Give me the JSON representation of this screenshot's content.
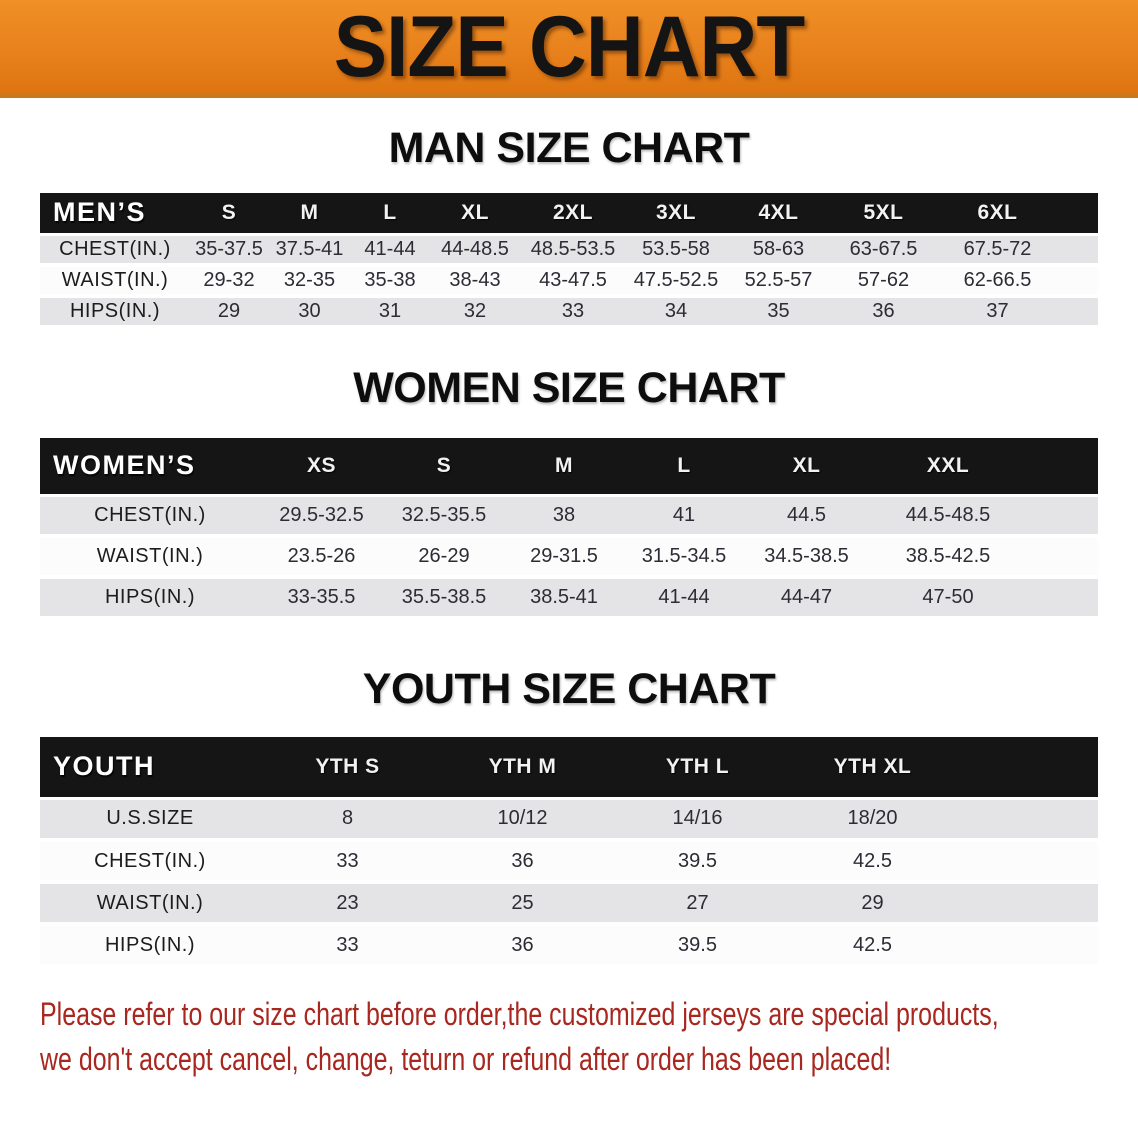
{
  "banner": {
    "title": "SIZE CHART"
  },
  "sections": [
    {
      "title": "MAN SIZE CHART",
      "table": {
        "label": "MEN’S",
        "columns": [
          "S",
          "M",
          "L",
          "XL",
          "2XL",
          "3XL",
          "4XL",
          "5XL",
          "6XL"
        ],
        "rows": [
          {
            "label": "CHEST(IN.)",
            "values": [
              "35-37.5",
              "37.5-41",
              "41-44",
              "44-48.5",
              "48.5-53.5",
              "53.5-58",
              "58-63",
              "63-67.5",
              "67.5-72"
            ]
          },
          {
            "label": "WAIST(IN.)",
            "values": [
              "29-32",
              "32-35",
              "35-38",
              "38-43",
              "43-47.5",
              "47.5-52.5",
              "52.5-57",
              "57-62",
              "62-66.5"
            ]
          },
          {
            "label": "HIPS(IN.)",
            "values": [
              "29",
              "30",
              "31",
              "32",
              "33",
              "34",
              "35",
              "36",
              "37"
            ]
          }
        ]
      }
    },
    {
      "title": "WOMEN SIZE CHART",
      "table": {
        "label": "WOMEN’S",
        "columns": [
          "XS",
          "S",
          "M",
          "L",
          "XL",
          "XXL"
        ],
        "rows": [
          {
            "label": "CHEST(IN.)",
            "values": [
              "29.5-32.5",
              "32.5-35.5",
              "38",
              "41",
              "44.5",
              "44.5-48.5"
            ]
          },
          {
            "label": "WAIST(IN.)",
            "values": [
              "23.5-26",
              "26-29",
              "29-31.5",
              "31.5-34.5",
              "34.5-38.5",
              "38.5-42.5"
            ]
          },
          {
            "label": "HIPS(IN.)",
            "values": [
              "33-35.5",
              "35.5-38.5",
              "38.5-41",
              "41-44",
              "44-47",
              "47-50"
            ]
          }
        ]
      }
    },
    {
      "title": "YOUTH SIZE CHART",
      "table": {
        "label": "YOUTH",
        "columns": [
          "YTH S",
          "YTH M",
          "YTH L",
          "YTH XL"
        ],
        "rows": [
          {
            "label": "U.S.SIZE",
            "values": [
              "8",
              "10/12",
              "14/16",
              "18/20"
            ]
          },
          {
            "label": "CHEST(IN.)",
            "values": [
              "33",
              "36",
              "39.5",
              "42.5"
            ]
          },
          {
            "label": "WAIST(IN.)",
            "values": [
              "23",
              "25",
              "27",
              "29"
            ]
          },
          {
            "label": "HIPS(IN.)",
            "values": [
              "33",
              "36",
              "39.5",
              "42.5"
            ]
          }
        ]
      }
    }
  ],
  "disclaimer": {
    "lines": [
      "Please refer to our size chart before order,the customized jerseys are special products,",
      "we don't accept cancel, change, teturn or refund after order has been placed!"
    ]
  },
  "colors": {
    "banner_orange": "#E8811C",
    "table_header_black": "#151515",
    "row_stripe_gray": "#E4E4E6",
    "disclaimer_red": "#A8271F"
  }
}
